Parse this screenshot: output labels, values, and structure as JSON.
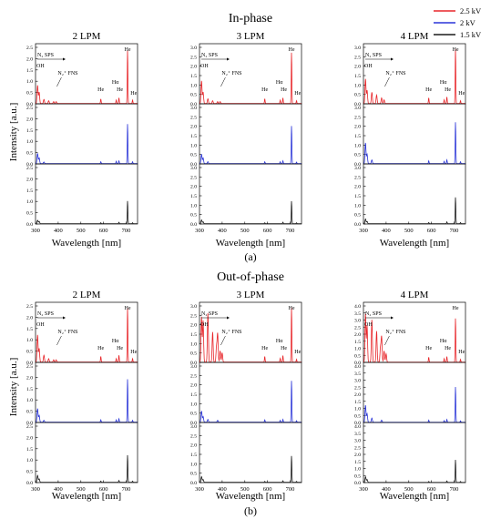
{
  "legend": {
    "position": "top-right",
    "entries": [
      {
        "label": "2.5 kV",
        "color": "#e8262a"
      },
      {
        "label": "2 kV",
        "color": "#2a35d8"
      },
      {
        "label": "1.5 kV",
        "color": "#1a1a1a"
      }
    ]
  },
  "groups": [
    {
      "title": "In-phase",
      "caption": "(a)",
      "xlabel": "Wavelength [nm]",
      "ylabel": "Intensity [a.u.]"
    },
    {
      "title": "Out-of-phase",
      "caption": "(b)",
      "xlabel": "Wavelength [nm]",
      "ylabel": "Intensity [a.u.]"
    }
  ],
  "chart_data": [
    {
      "type": "line",
      "group": "In-phase",
      "title": "2 LPM",
      "x_ticks": [
        300,
        400,
        500,
        600,
        700
      ],
      "xlim": [
        300,
        750
      ],
      "ylim": [
        0,
        2.5
      ],
      "y_ticks": [
        "0.0",
        "0.5",
        "1.0",
        "1.5",
        "2.0",
        "2.5"
      ],
      "series": [
        {
          "name": "2.5 kV",
          "peaks": [
            [
              309,
              0.8
            ],
            [
              316,
              0.5
            ],
            [
              337,
              0.18
            ],
            [
              358,
              0.12
            ],
            [
              380,
              0.08
            ],
            [
              391,
              0.08
            ],
            [
              588,
              0.2
            ],
            [
              656,
              0.15
            ],
            [
              668,
              0.25
            ],
            [
              706,
              2.35
            ],
            [
              728,
              0.15
            ]
          ]
        },
        {
          "name": "2 kV",
          "peaks": [
            [
              309,
              0.45
            ],
            [
              316,
              0.25
            ],
            [
              337,
              0.07
            ],
            [
              588,
              0.08
            ],
            [
              656,
              0.1
            ],
            [
              668,
              0.12
            ],
            [
              706,
              1.75
            ],
            [
              728,
              0.08
            ]
          ]
        },
        {
          "name": "1.5 kV",
          "peaks": [
            [
              309,
              0.15
            ],
            [
              316,
              0.1
            ],
            [
              588,
              0.04
            ],
            [
              668,
              0.06
            ],
            [
              706,
              1.0
            ],
            [
              728,
              0.04
            ]
          ]
        }
      ],
      "annotations": [
        "N₂ SPS",
        "OH",
        "N₂⁺ FNS",
        "He",
        "Hα",
        "He",
        "He",
        "He"
      ]
    },
    {
      "type": "line",
      "group": "In-phase",
      "title": "3 LPM",
      "x_ticks": [
        300,
        400,
        500,
        600,
        700
      ],
      "xlim": [
        300,
        750
      ],
      "ylim": [
        0,
        3.0
      ],
      "y_ticks": [
        "0.0",
        "0.5",
        "1.0",
        "1.5",
        "2.0",
        "2.5",
        "3.0"
      ],
      "series": [
        {
          "name": "2.5 kV",
          "peaks": [
            [
              309,
              1.2
            ],
            [
              316,
              0.6
            ],
            [
              337,
              0.25
            ],
            [
              358,
              0.15
            ],
            [
              380,
              0.1
            ],
            [
              391,
              0.1
            ],
            [
              588,
              0.25
            ],
            [
              656,
              0.18
            ],
            [
              668,
              0.3
            ],
            [
              706,
              2.7
            ],
            [
              728,
              0.15
            ]
          ]
        },
        {
          "name": "2 kV",
          "peaks": [
            [
              309,
              0.5
            ],
            [
              316,
              0.3
            ],
            [
              337,
              0.1
            ],
            [
              588,
              0.1
            ],
            [
              656,
              0.1
            ],
            [
              668,
              0.15
            ],
            [
              706,
              2.0
            ],
            [
              728,
              0.08
            ]
          ]
        },
        {
          "name": "1.5 kV",
          "peaks": [
            [
              309,
              0.2
            ],
            [
              316,
              0.1
            ],
            [
              588,
              0.05
            ],
            [
              668,
              0.08
            ],
            [
              706,
              1.2
            ],
            [
              728,
              0.05
            ]
          ]
        }
      ],
      "annotations": [
        "N₂ SPS",
        "OH",
        "N₂⁺ FNS",
        "He",
        "Hα",
        "He",
        "He",
        "He"
      ]
    },
    {
      "type": "line",
      "group": "In-phase",
      "title": "4 LPM",
      "x_ticks": [
        300,
        400,
        500,
        600,
        700
      ],
      "xlim": [
        300,
        750
      ],
      "ylim": [
        0,
        3.0
      ],
      "y_ticks": [
        "0.0",
        "0.5",
        "1.0",
        "1.5",
        "2.0",
        "2.5",
        "3.0"
      ],
      "series": [
        {
          "name": "2.5 kV",
          "peaks": [
            [
              309,
              1.3
            ],
            [
              316,
              0.7
            ],
            [
              337,
              0.6
            ],
            [
              358,
              0.45
            ],
            [
              380,
              0.3
            ],
            [
              391,
              0.2
            ],
            [
              588,
              0.3
            ],
            [
              656,
              0.2
            ],
            [
              668,
              0.35
            ],
            [
              706,
              2.9
            ],
            [
              728,
              0.15
            ]
          ]
        },
        {
          "name": "2 kV",
          "peaks": [
            [
              309,
              1.1
            ],
            [
              316,
              0.5
            ],
            [
              337,
              0.2
            ],
            [
              588,
              0.15
            ],
            [
              656,
              0.12
            ],
            [
              668,
              0.2
            ],
            [
              706,
              2.2
            ],
            [
              728,
              0.1
            ]
          ]
        },
        {
          "name": "1.5 kV",
          "peaks": [
            [
              309,
              0.25
            ],
            [
              316,
              0.12
            ],
            [
              588,
              0.06
            ],
            [
              668,
              0.1
            ],
            [
              706,
              1.4
            ],
            [
              728,
              0.06
            ]
          ]
        }
      ],
      "annotations": [
        "N₂ SPS",
        "OH",
        "N₂⁺ FNS",
        "He",
        "Hα",
        "He",
        "He",
        "He"
      ]
    },
    {
      "type": "line",
      "group": "Out-of-phase",
      "title": "2 LPM",
      "x_ticks": [
        300,
        400,
        500,
        600,
        700
      ],
      "xlim": [
        300,
        750
      ],
      "ylim": [
        0,
        2.5
      ],
      "y_ticks": [
        "0.0",
        "0.5",
        "1.0",
        "1.5",
        "2.0",
        "2.5"
      ],
      "series": [
        {
          "name": "2.5 kV",
          "peaks": [
            [
              309,
              1.2
            ],
            [
              316,
              0.6
            ],
            [
              337,
              0.3
            ],
            [
              358,
              0.15
            ],
            [
              380,
              0.1
            ],
            [
              391,
              0.1
            ],
            [
              588,
              0.25
            ],
            [
              656,
              0.15
            ],
            [
              668,
              0.3
            ],
            [
              706,
              2.4
            ],
            [
              728,
              0.15
            ]
          ]
        },
        {
          "name": "2 kV",
          "peaks": [
            [
              309,
              0.6
            ],
            [
              316,
              0.3
            ],
            [
              337,
              0.08
            ],
            [
              588,
              0.1
            ],
            [
              656,
              0.1
            ],
            [
              668,
              0.15
            ],
            [
              706,
              1.9
            ],
            [
              728,
              0.08
            ]
          ]
        },
        {
          "name": "1.5 kV",
          "peaks": [
            [
              309,
              0.3
            ],
            [
              316,
              0.15
            ],
            [
              588,
              0.05
            ],
            [
              668,
              0.08
            ],
            [
              706,
              1.2
            ],
            [
              728,
              0.05
            ]
          ]
        }
      ],
      "annotations": [
        "N₂ SPS",
        "OH",
        "N₂⁺ FNS",
        "He",
        "Hα",
        "He",
        "He",
        "He"
      ]
    },
    {
      "type": "line",
      "group": "Out-of-phase",
      "title": "3 LPM",
      "x_ticks": [
        300,
        400,
        500,
        600,
        700
      ],
      "xlim": [
        300,
        750
      ],
      "ylim": [
        0,
        3.0
      ],
      "y_ticks": [
        "0.0",
        "0.5",
        "1.0",
        "1.5",
        "2.0",
        "2.5",
        "3.0"
      ],
      "series": [
        {
          "name": "2.5 kV",
          "peaks": [
            [
              309,
              2.4
            ],
            [
              316,
              2.2
            ],
            [
              337,
              2.6
            ],
            [
              358,
              1.6
            ],
            [
              375,
              0.8
            ],
            [
              380,
              1.5
            ],
            [
              391,
              0.6
            ],
            [
              400,
              0.5
            ],
            [
              588,
              0.3
            ],
            [
              656,
              0.2
            ],
            [
              668,
              0.35
            ],
            [
              706,
              2.9
            ],
            [
              728,
              0.15
            ]
          ]
        },
        {
          "name": "2 kV",
          "peaks": [
            [
              309,
              0.6
            ],
            [
              316,
              0.3
            ],
            [
              337,
              0.15
            ],
            [
              380,
              0.1
            ],
            [
              588,
              0.12
            ],
            [
              656,
              0.1
            ],
            [
              668,
              0.15
            ],
            [
              706,
              2.2
            ],
            [
              728,
              0.08
            ]
          ]
        },
        {
          "name": "1.5 kV",
          "peaks": [
            [
              309,
              0.3
            ],
            [
              316,
              0.15
            ],
            [
              588,
              0.05
            ],
            [
              668,
              0.08
            ],
            [
              706,
              1.4
            ],
            [
              728,
              0.05
            ]
          ]
        }
      ],
      "annotations": [
        "N₂ SPS",
        "OH",
        "N₂⁺ FNS",
        "He",
        "Hα",
        "He",
        "He",
        "He"
      ]
    },
    {
      "type": "line",
      "group": "Out-of-phase",
      "title": "4 LPM",
      "x_ticks": [
        300,
        400,
        500,
        600,
        700
      ],
      "xlim": [
        300,
        750
      ],
      "ylim": [
        0,
        4.0
      ],
      "y_ticks": [
        "0.0",
        "0.5",
        "1.0",
        "1.5",
        "2.0",
        "2.5",
        "3.0",
        "3.5",
        "4.0"
      ],
      "series": [
        {
          "name": "2.5 kV",
          "peaks": [
            [
              309,
              3.4
            ],
            [
              316,
              2.6
            ],
            [
              337,
              3.0
            ],
            [
              358,
              2.2
            ],
            [
              375,
              1.0
            ],
            [
              380,
              1.8
            ],
            [
              391,
              0.8
            ],
            [
              400,
              0.6
            ],
            [
              588,
              0.35
            ],
            [
              656,
              0.25
            ],
            [
              668,
              0.4
            ],
            [
              706,
              3.1
            ],
            [
              728,
              0.2
            ]
          ]
        },
        {
          "name": "2 kV",
          "peaks": [
            [
              309,
              1.2
            ],
            [
              316,
              0.6
            ],
            [
              337,
              0.3
            ],
            [
              380,
              0.15
            ],
            [
              588,
              0.15
            ],
            [
              656,
              0.12
            ],
            [
              668,
              0.2
            ],
            [
              706,
              2.5
            ],
            [
              728,
              0.1
            ]
          ]
        },
        {
          "name": "1.5 kV",
          "peaks": [
            [
              309,
              0.4
            ],
            [
              316,
              0.2
            ],
            [
              588,
              0.06
            ],
            [
              668,
              0.1
            ],
            [
              706,
              1.6
            ],
            [
              728,
              0.06
            ]
          ]
        }
      ],
      "annotations": [
        "N₂ SPS",
        "OH",
        "N₂⁺ FNS",
        "He",
        "Hα",
        "He",
        "He",
        "He"
      ]
    }
  ]
}
